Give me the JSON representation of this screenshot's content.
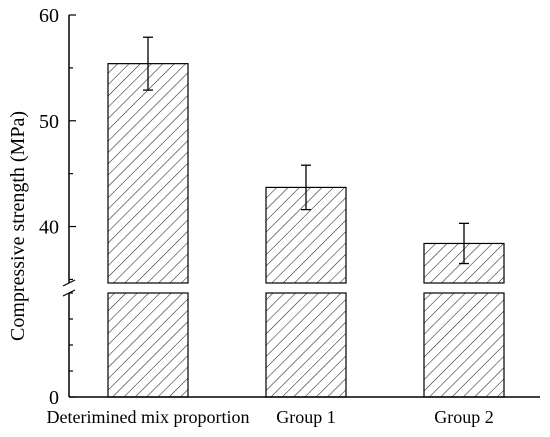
{
  "chart_data": {
    "type": "bar",
    "title": "",
    "xlabel": "",
    "ylabel": "Compressive strength (MPa)",
    "categories": [
      "Deterimined mix proportion",
      "Group 1",
      "Group 2"
    ],
    "series": [
      {
        "values": [
          55.4,
          43.7,
          38.4
        ],
        "error": [
          2.5,
          2.1,
          1.9
        ]
      }
    ],
    "y_axis_break": [
      0,
      34
    ],
    "ylim": [
      0,
      60
    ],
    "yticks": [
      "0",
      "40",
      "50",
      "60"
    ],
    "bar_fill": "diagonal-hatch",
    "grid": false
  }
}
